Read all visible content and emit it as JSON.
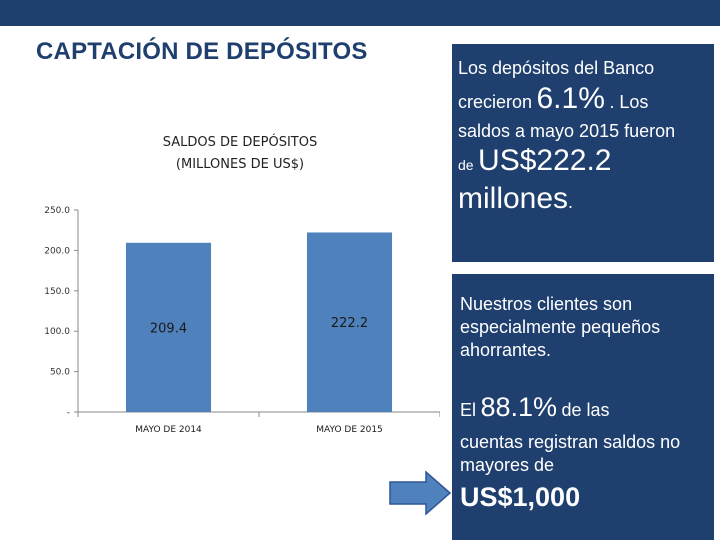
{
  "slide": {
    "title": "CAPTACIÓN DE DEPÓSITOS"
  },
  "chart_data": {
    "type": "bar",
    "title_line1": "SALDOS DE DEPÓSITOS",
    "title_line2": "(MILLONES DE US$)",
    "categories": [
      "MAYO DE 2014",
      "MAYO DE 2015"
    ],
    "values": [
      209.4,
      222.2
    ],
    "value_labels": [
      "209.4",
      "222.2"
    ],
    "ylim": [
      0,
      250
    ],
    "yticks": [
      0,
      50,
      100,
      150,
      200,
      250
    ],
    "ytick_labels": [
      "-",
      "50.0",
      "100.0",
      "150.0",
      "200.0",
      "250.0"
    ],
    "bar_color": "#4f81bd",
    "grid": false
  },
  "panel_top": {
    "line1": "Los depósitos  del Banco",
    "line2_a": "crecieron",
    "line2_big": "6.1%",
    "line2_b": ". Los",
    "line3": "saldos a mayo 2015 fueron",
    "line4_small": "de",
    "line4_big": "US$222.2",
    "line5_big": "millones",
    "line5_end": "."
  },
  "panel_bottom": {
    "line1": "Nuestros clientes son",
    "line2": "especialmente pequeños",
    "line3": "ahorrantes.",
    "line4_a": "El",
    "line4_big": "88.1%",
    "line4_b": "de las",
    "line5": "cuentas registran saldos no",
    "line6": "mayores  de",
    "line7_big": "US$1,000"
  },
  "colors": {
    "navy": "#1f3f6e",
    "arrow": "#4f81bd"
  },
  "icons": {
    "arrow": "right-arrow-icon"
  }
}
